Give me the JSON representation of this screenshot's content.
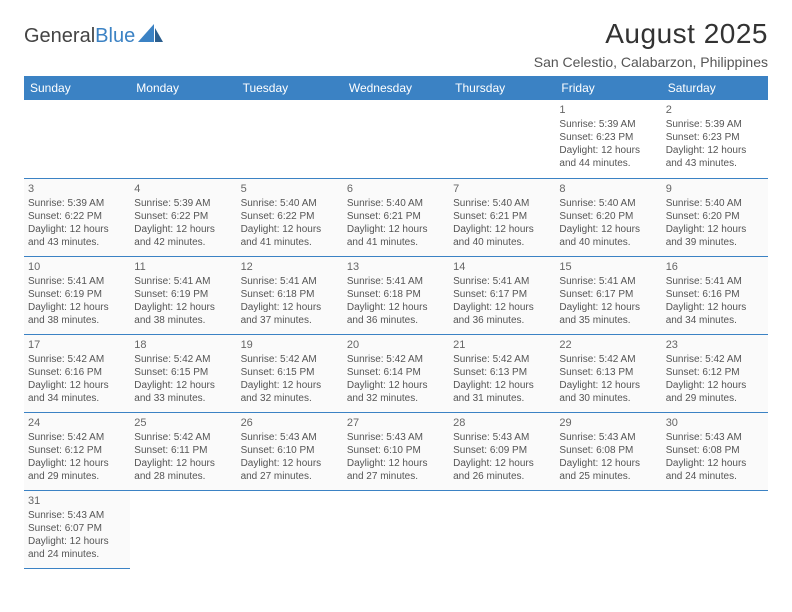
{
  "logo": {
    "part1": "General",
    "part2": "Blue"
  },
  "title": "August 2025",
  "location": "San Celestio, Calabarzon, Philippines",
  "colors": {
    "header_bg": "#3b82c4",
    "header_text": "#ffffff",
    "cell_bg": "#fafafa",
    "border": "#3b82c4",
    "text": "#555555",
    "title_text": "#333333"
  },
  "typography": {
    "title_fontsize": 28,
    "location_fontsize": 14,
    "dayheader_fontsize": 12,
    "cell_fontsize": 10
  },
  "calendar": {
    "type": "table",
    "columns": [
      "Sunday",
      "Monday",
      "Tuesday",
      "Wednesday",
      "Thursday",
      "Friday",
      "Saturday"
    ],
    "first_weekday_index": 5,
    "days": [
      {
        "n": 1,
        "sunrise": "5:39 AM",
        "sunset": "6:23 PM",
        "daylight": "12 hours and 44 minutes."
      },
      {
        "n": 2,
        "sunrise": "5:39 AM",
        "sunset": "6:23 PM",
        "daylight": "12 hours and 43 minutes."
      },
      {
        "n": 3,
        "sunrise": "5:39 AM",
        "sunset": "6:22 PM",
        "daylight": "12 hours and 43 minutes."
      },
      {
        "n": 4,
        "sunrise": "5:39 AM",
        "sunset": "6:22 PM",
        "daylight": "12 hours and 42 minutes."
      },
      {
        "n": 5,
        "sunrise": "5:40 AM",
        "sunset": "6:22 PM",
        "daylight": "12 hours and 41 minutes."
      },
      {
        "n": 6,
        "sunrise": "5:40 AM",
        "sunset": "6:21 PM",
        "daylight": "12 hours and 41 minutes."
      },
      {
        "n": 7,
        "sunrise": "5:40 AM",
        "sunset": "6:21 PM",
        "daylight": "12 hours and 40 minutes."
      },
      {
        "n": 8,
        "sunrise": "5:40 AM",
        "sunset": "6:20 PM",
        "daylight": "12 hours and 40 minutes."
      },
      {
        "n": 9,
        "sunrise": "5:40 AM",
        "sunset": "6:20 PM",
        "daylight": "12 hours and 39 minutes."
      },
      {
        "n": 10,
        "sunrise": "5:41 AM",
        "sunset": "6:19 PM",
        "daylight": "12 hours and 38 minutes."
      },
      {
        "n": 11,
        "sunrise": "5:41 AM",
        "sunset": "6:19 PM",
        "daylight": "12 hours and 38 minutes."
      },
      {
        "n": 12,
        "sunrise": "5:41 AM",
        "sunset": "6:18 PM",
        "daylight": "12 hours and 37 minutes."
      },
      {
        "n": 13,
        "sunrise": "5:41 AM",
        "sunset": "6:18 PM",
        "daylight": "12 hours and 36 minutes."
      },
      {
        "n": 14,
        "sunrise": "5:41 AM",
        "sunset": "6:17 PM",
        "daylight": "12 hours and 36 minutes."
      },
      {
        "n": 15,
        "sunrise": "5:41 AM",
        "sunset": "6:17 PM",
        "daylight": "12 hours and 35 minutes."
      },
      {
        "n": 16,
        "sunrise": "5:41 AM",
        "sunset": "6:16 PM",
        "daylight": "12 hours and 34 minutes."
      },
      {
        "n": 17,
        "sunrise": "5:42 AM",
        "sunset": "6:16 PM",
        "daylight": "12 hours and 34 minutes."
      },
      {
        "n": 18,
        "sunrise": "5:42 AM",
        "sunset": "6:15 PM",
        "daylight": "12 hours and 33 minutes."
      },
      {
        "n": 19,
        "sunrise": "5:42 AM",
        "sunset": "6:15 PM",
        "daylight": "12 hours and 32 minutes."
      },
      {
        "n": 20,
        "sunrise": "5:42 AM",
        "sunset": "6:14 PM",
        "daylight": "12 hours and 32 minutes."
      },
      {
        "n": 21,
        "sunrise": "5:42 AM",
        "sunset": "6:13 PM",
        "daylight": "12 hours and 31 minutes."
      },
      {
        "n": 22,
        "sunrise": "5:42 AM",
        "sunset": "6:13 PM",
        "daylight": "12 hours and 30 minutes."
      },
      {
        "n": 23,
        "sunrise": "5:42 AM",
        "sunset": "6:12 PM",
        "daylight": "12 hours and 29 minutes."
      },
      {
        "n": 24,
        "sunrise": "5:42 AM",
        "sunset": "6:12 PM",
        "daylight": "12 hours and 29 minutes."
      },
      {
        "n": 25,
        "sunrise": "5:42 AM",
        "sunset": "6:11 PM",
        "daylight": "12 hours and 28 minutes."
      },
      {
        "n": 26,
        "sunrise": "5:43 AM",
        "sunset": "6:10 PM",
        "daylight": "12 hours and 27 minutes."
      },
      {
        "n": 27,
        "sunrise": "5:43 AM",
        "sunset": "6:10 PM",
        "daylight": "12 hours and 27 minutes."
      },
      {
        "n": 28,
        "sunrise": "5:43 AM",
        "sunset": "6:09 PM",
        "daylight": "12 hours and 26 minutes."
      },
      {
        "n": 29,
        "sunrise": "5:43 AM",
        "sunset": "6:08 PM",
        "daylight": "12 hours and 25 minutes."
      },
      {
        "n": 30,
        "sunrise": "5:43 AM",
        "sunset": "6:08 PM",
        "daylight": "12 hours and 24 minutes."
      },
      {
        "n": 31,
        "sunrise": "5:43 AM",
        "sunset": "6:07 PM",
        "daylight": "12 hours and 24 minutes."
      }
    ],
    "labels": {
      "sunrise": "Sunrise:",
      "sunset": "Sunset:",
      "daylight": "Daylight:"
    }
  }
}
